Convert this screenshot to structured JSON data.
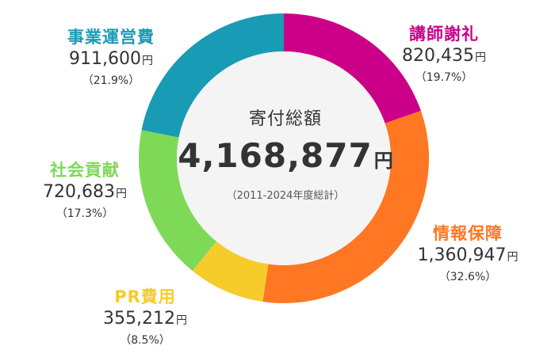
{
  "chart_data": {
    "type": "pie",
    "center": {
      "title": "寄付総額",
      "total": "4,168,877",
      "unit": "円",
      "period": "（2011-2024年度総計）"
    },
    "slices": [
      {
        "label": "講師謝礼",
        "value": 820435,
        "amount": "820,435",
        "unit": "円",
        "percent": "（19.7%）",
        "color": "#cc0088"
      },
      {
        "label": "情報保障",
        "value": 1360947,
        "amount": "1,360,947",
        "unit": "円",
        "percent": "（32.6%）",
        "color": "#ff7722"
      },
      {
        "label": "PR費用",
        "value": 355212,
        "amount": "355,212",
        "unit": "円",
        "percent": "（8.5%）",
        "color": "#f5cc2a"
      },
      {
        "label": "社会貢献",
        "value": 720683,
        "amount": "720,683",
        "unit": "円",
        "percent": "（17.3%）",
        "color": "#7ed957"
      },
      {
        "label": "事業運営費",
        "value": 911600,
        "amount": "911,600",
        "unit": "円",
        "percent": "（21.9%）",
        "color": "#1a9bb5"
      }
    ]
  }
}
